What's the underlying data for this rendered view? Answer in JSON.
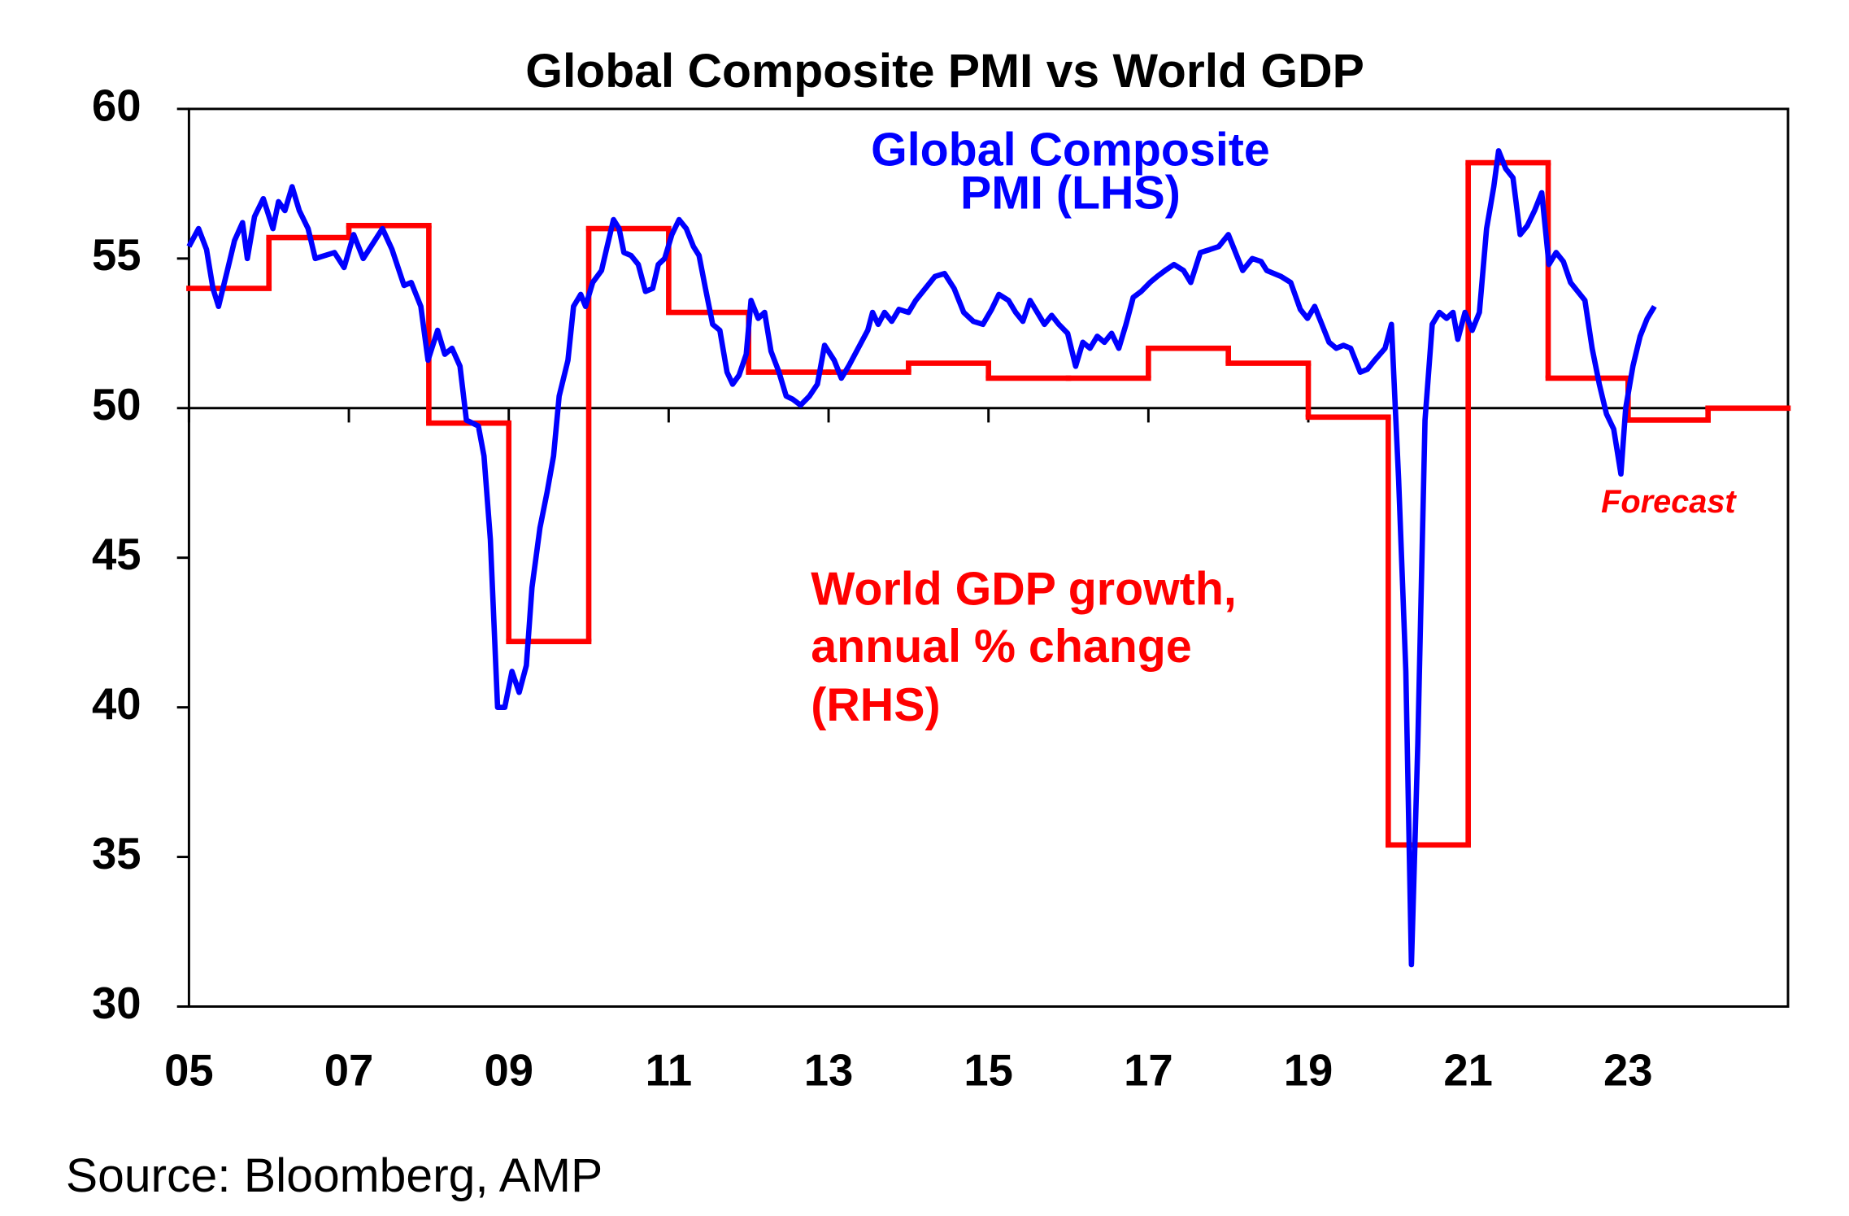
{
  "chart_data": {
    "type": "line",
    "title": "Global Composite PMI vs World GDP",
    "source": "Source: Bloomberg, AMP",
    "xlim": [
      2005,
      2025
    ],
    "xticks": [
      {
        "value": 2005,
        "label": "05"
      },
      {
        "value": 2007,
        "label": "07"
      },
      {
        "value": 2009,
        "label": "09"
      },
      {
        "value": 2011,
        "label": "11"
      },
      {
        "value": 2013,
        "label": "13"
      },
      {
        "value": 2015,
        "label": "15"
      },
      {
        "value": 2017,
        "label": "17"
      },
      {
        "value": 2019,
        "label": "19"
      },
      {
        "value": 2021,
        "label": "21"
      },
      {
        "value": 2023,
        "label": "23"
      }
    ],
    "ylim": [
      30,
      60
    ],
    "yticks": [
      30,
      35,
      40,
      45,
      50,
      55,
      60
    ],
    "reference_line": 50,
    "series": [
      {
        "label_lines": [
          "Global Composite",
          "PMI (LHS)"
        ],
        "color": "#0000ff",
        "step": false,
        "x": [
          2005.0,
          2005.12,
          2005.22,
          2005.3,
          2005.37,
          2005.48,
          2005.57,
          2005.67,
          2005.73,
          2005.82,
          2005.93,
          2006.05,
          2006.12,
          2006.2,
          2006.29,
          2006.38,
          2006.49,
          2006.58,
          2006.82,
          2006.94,
          2007.06,
          2007.18,
          2007.42,
          2007.54,
          2007.69,
          2007.78,
          2007.9,
          2007.99,
          2008.11,
          2008.2,
          2008.29,
          2008.39,
          2008.47,
          2008.62,
          2008.69,
          2008.77,
          2008.86,
          2008.95,
          2009.04,
          2009.13,
          2009.22,
          2009.29,
          2009.39,
          2009.48,
          2009.56,
          2009.63,
          2009.74,
          2009.81,
          2009.9,
          2009.96,
          2010.05,
          2010.16,
          2010.23,
          2010.31,
          2010.38,
          2010.44,
          2010.53,
          2010.62,
          2010.71,
          2010.8,
          2010.87,
          2010.95,
          2011.04,
          2011.13,
          2011.22,
          2011.31,
          2011.38,
          2011.46,
          2011.55,
          2011.64,
          2011.73,
          2011.8,
          2011.88,
          2011.97,
          2012.03,
          2012.12,
          2012.2,
          2012.28,
          2012.38,
          2012.47,
          2012.55,
          2012.65,
          2012.76,
          2012.86,
          2012.95,
          2013.07,
          2013.16,
          2013.25,
          2013.37,
          2013.49,
          2013.55,
          2013.62,
          2013.7,
          2013.79,
          2013.88,
          2014.0,
          2014.09,
          2014.21,
          2014.33,
          2014.45,
          2014.57,
          2014.69,
          2014.81,
          2014.93,
          2015.04,
          2015.13,
          2015.25,
          2015.34,
          2015.43,
          2015.52,
          2015.61,
          2015.7,
          2015.79,
          2015.88,
          2015.99,
          2016.09,
          2016.18,
          2016.27,
          2016.36,
          2016.45,
          2016.54,
          2016.63,
          2016.72,
          2016.81,
          2016.91,
          2017.02,
          2017.11,
          2017.21,
          2017.32,
          2017.44,
          2017.53,
          2017.65,
          2017.77,
          2017.88,
          2018.0,
          2018.09,
          2018.18,
          2018.3,
          2018.41,
          2018.48,
          2018.66,
          2018.78,
          2018.9,
          2018.99,
          2019.08,
          2019.17,
          2019.26,
          2019.35,
          2019.44,
          2019.53,
          2019.65,
          2019.74,
          2019.83,
          2019.96,
          2020.04,
          2020.13,
          2020.22,
          2020.29,
          2020.37,
          2020.46,
          2020.55,
          2020.64,
          2020.73,
          2020.81,
          2020.87,
          2020.96,
          2021.05,
          2021.14,
          2021.23,
          2021.32,
          2021.38,
          2021.47,
          2021.56,
          2021.65,
          2021.74,
          2021.83,
          2021.92,
          2022.01,
          2022.1,
          2022.19,
          2022.28,
          2022.37,
          2022.46,
          2022.55,
          2022.64,
          2022.73,
          2022.82,
          2022.91,
          2022.97,
          2023.06,
          2023.15,
          2023.24,
          2023.33
        ],
        "values": [
          55.4,
          56.0,
          55.3,
          54.0,
          53.4,
          54.6,
          55.6,
          56.2,
          55.0,
          56.4,
          57.0,
          56.0,
          56.9,
          56.6,
          57.4,
          56.6,
          56.0,
          55.0,
          55.2,
          54.7,
          55.8,
          55.0,
          56.0,
          55.3,
          54.1,
          54.2,
          53.4,
          51.6,
          52.6,
          51.8,
          52.0,
          51.4,
          49.6,
          49.4,
          48.4,
          45.6,
          40.0,
          40.0,
          41.2,
          40.5,
          41.4,
          44.0,
          46.0,
          47.2,
          48.4,
          50.4,
          51.6,
          53.4,
          53.8,
          53.4,
          54.2,
          54.6,
          55.4,
          56.3,
          56.0,
          55.2,
          55.1,
          54.8,
          53.9,
          54.0,
          54.8,
          55.0,
          55.8,
          56.3,
          56.0,
          55.4,
          55.1,
          54.0,
          52.8,
          52.6,
          51.2,
          50.8,
          51.1,
          51.8,
          53.6,
          53.0,
          53.2,
          51.9,
          51.2,
          50.4,
          50.3,
          50.1,
          50.4,
          50.8,
          52.1,
          51.6,
          51.0,
          51.4,
          52.0,
          52.6,
          53.2,
          52.8,
          53.2,
          52.9,
          53.3,
          53.2,
          53.6,
          54.0,
          54.4,
          54.5,
          54.0,
          53.2,
          52.9,
          52.8,
          53.3,
          53.8,
          53.6,
          53.2,
          52.9,
          53.6,
          53.2,
          52.8,
          53.1,
          52.8,
          52.5,
          51.4,
          52.2,
          52.0,
          52.4,
          52.2,
          52.5,
          52.0,
          52.8,
          53.7,
          53.9,
          54.2,
          54.4,
          54.6,
          54.8,
          54.6,
          54.2,
          55.2,
          55.3,
          55.4,
          55.8,
          55.2,
          54.6,
          55.0,
          54.9,
          54.6,
          54.4,
          54.2,
          53.3,
          53.0,
          53.4,
          52.8,
          52.2,
          52.0,
          52.1,
          52.0,
          51.2,
          51.3,
          51.6,
          52.0,
          52.8,
          47.6,
          41.2,
          31.4,
          38.8,
          49.6,
          52.8,
          53.2,
          53.0,
          53.2,
          52.3,
          53.2,
          52.6,
          53.2,
          56.0,
          57.4,
          58.6,
          58.0,
          57.7,
          55.8,
          56.1,
          56.6,
          57.2,
          54.8,
          55.2,
          54.9,
          54.2,
          53.9,
          53.6,
          52.0,
          50.8,
          49.8,
          49.3,
          47.8,
          50.0,
          51.4,
          52.4,
          53.0,
          53.4
        ]
      },
      {
        "label_lines": [
          "World GDP growth,",
          "annual % change",
          "(RHS)"
        ],
        "color": "#ff0000",
        "step": true,
        "x": [
          2005,
          2006,
          2007,
          2008,
          2009,
          2010,
          2011,
          2012,
          2013,
          2014,
          2015,
          2016,
          2017,
          2018,
          2019,
          2020,
          2021,
          2022,
          2023,
          2024
        ],
        "values": [
          54.0,
          55.7,
          56.1,
          49.5,
          42.2,
          56.0,
          53.2,
          51.2,
          51.2,
          51.5,
          51.0,
          51.0,
          52.0,
          51.5,
          49.7,
          35.4,
          58.2,
          51.0,
          49.6,
          50.0
        ]
      }
    ],
    "annotations": [
      {
        "text": "Forecast",
        "color": "#ff0000"
      }
    ]
  }
}
